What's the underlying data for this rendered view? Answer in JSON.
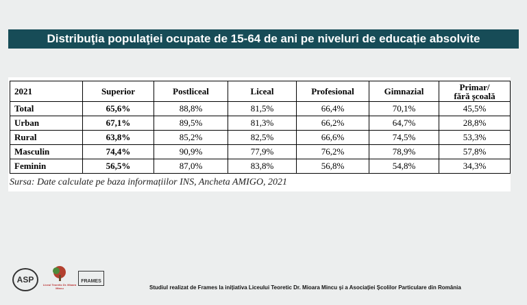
{
  "header": {
    "title": "Distribuţia populaţiei ocupate de 15-64 de ani pe niveluri de educație absolvite"
  },
  "table": {
    "columns": [
      "2021",
      "Superior",
      "Postliceal",
      "Liceal",
      "Profesional",
      "Gimnazial",
      "Primar/\nfără școală"
    ],
    "rows": [
      [
        "Total",
        "65,6%",
        "88,8%",
        "81,5%",
        "66,4%",
        "70,1%",
        "45,5%"
      ],
      [
        "Urban",
        "67,1%",
        "89,5%",
        "81,3%",
        "66,2%",
        "64,7%",
        "28,8%"
      ],
      [
        "Rural",
        "63,8%",
        "85,2%",
        "82,5%",
        "66,6%",
        "74,5%",
        "53,3%"
      ],
      [
        "Masculin",
        "74,4%",
        "90,9%",
        "77,9%",
        "76,2%",
        "78,9%",
        "57,8%"
      ],
      [
        "Feminin",
        "56,5%",
        "87,0%",
        "83,8%",
        "56,8%",
        "54,8%",
        "34,3%"
      ]
    ],
    "source": "Sursa: Date calculate pe baza informațiilor INS, Ancheta AMIGO, 2021"
  },
  "footer": {
    "logos": [
      "ASP",
      "Liceul Teoretic Dr. Mioara Mincu",
      "FRAMES"
    ],
    "text": "Studiul realizat de  Frames la inițiativa Liceului Teoretic Dr. Mioara Mincu și a Asociației Școlilor Particulare din România"
  }
}
